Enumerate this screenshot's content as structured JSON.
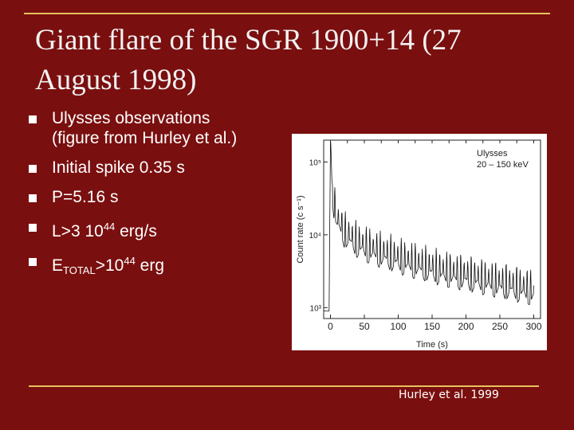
{
  "slide": {
    "title": "Giant flare of the SGR 1900+14 (27 August 1998)",
    "bullets": [
      {
        "main": "Ulysses observations"
      },
      {
        "main": "(figure from  Hurley et al.)"
      },
      {
        "main": "Initial spike 0.35 s"
      },
      {
        "main": "P=5.16 s"
      },
      {
        "pre": "L>3 10",
        "sup": "44",
        "post": " erg/s"
      },
      {
        "pre": "E",
        "sub": "TOTAL",
        "mid": ">10",
        "sup": "44",
        "post": "  erg"
      }
    ],
    "credit": "Hurley et al. 1999"
  },
  "chart_data": {
    "type": "line",
    "annotation": [
      "Ulysses",
      "20 – 150  keV"
    ],
    "xlabel": "Time (s)",
    "ylabel": "Count rate (c s⁻¹)",
    "x_ticks": [
      0,
      50,
      100,
      150,
      200,
      250,
      300
    ],
    "y_ticks": [
      "10³",
      "10⁴",
      "10⁵"
    ],
    "xlim": [
      -10,
      310
    ],
    "ylim_log10": [
      2.85,
      5.3
    ],
    "y_scale": "log",
    "series": [
      {
        "x": [
          -10,
          -2,
          0,
          0.35,
          2,
          5,
          10,
          20,
          30,
          40,
          60,
          80,
          100,
          130,
          160,
          200,
          250,
          300
        ],
        "y": [
          900,
          900,
          200000,
          200000,
          60000,
          30000,
          18000,
          12000,
          10000,
          8500,
          7000,
          6000,
          5200,
          4300,
          3600,
          3000,
          2400,
          1900
        ]
      }
    ],
    "pulse_period_s": 5.16
  }
}
